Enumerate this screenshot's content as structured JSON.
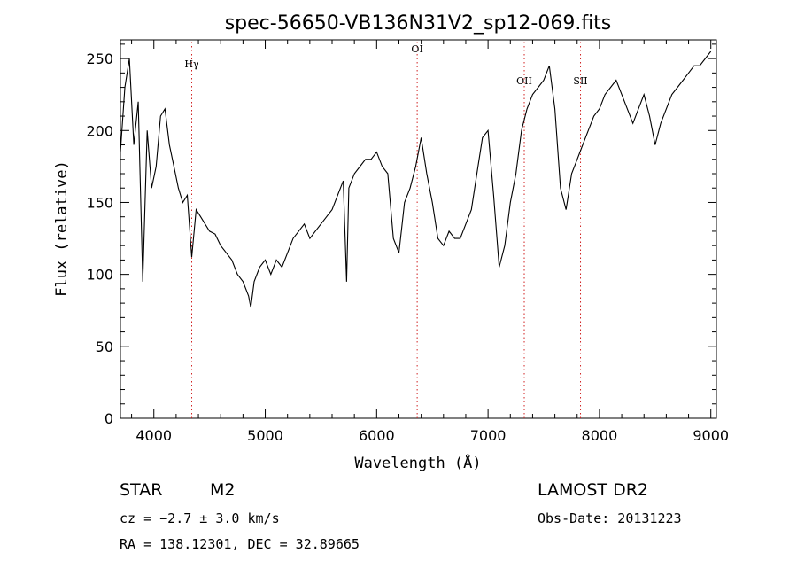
{
  "colors": {
    "spectrum": "#000000",
    "marker": "#d02020",
    "axes": "#000000"
  },
  "chart_data": {
    "type": "line",
    "title": "spec-56650-VB136N31V2_sp12-069.fits",
    "xlabel": "Wavelength (Å)",
    "ylabel": "Flux (relative)",
    "xlim": [
      3700,
      9050
    ],
    "ylim": [
      0,
      263
    ],
    "xticks": [
      4000,
      5000,
      6000,
      7000,
      8000,
      9000
    ],
    "yticks": [
      0,
      50,
      100,
      150,
      200,
      250
    ],
    "grid": false,
    "line_markers": [
      {
        "label": "Hγ",
        "x": 4340
      },
      {
        "label": "OI",
        "x": 6364
      },
      {
        "label": "OII",
        "x": 7325
      },
      {
        "label": "SII",
        "x": 7830
      }
    ],
    "series": [
      {
        "x": [
          3700,
          3740,
          3780,
          3820,
          3860,
          3900,
          3940,
          3980,
          4020,
          4060,
          4100,
          4140,
          4180,
          4220,
          4260,
          4300,
          4340,
          4380,
          4420,
          4460,
          4500,
          4550,
          4600,
          4650,
          4700,
          4750,
          4800,
          4850,
          4870,
          4900,
          4950,
          5000,
          5050,
          5100,
          5150,
          5200,
          5250,
          5300,
          5350,
          5400,
          5450,
          5500,
          5550,
          5600,
          5650,
          5700,
          5730,
          5750,
          5800,
          5850,
          5900,
          5950,
          6000,
          6050,
          6100,
          6150,
          6200,
          6250,
          6300,
          6350,
          6400,
          6450,
          6500,
          6550,
          6600,
          6650,
          6700,
          6750,
          6800,
          6850,
          6900,
          6950,
          7000,
          7050,
          7100,
          7150,
          7200,
          7250,
          7300,
          7350,
          7400,
          7450,
          7500,
          7550,
          7600,
          7650,
          7700,
          7750,
          7800,
          7850,
          7900,
          7950,
          8000,
          8050,
          8100,
          8150,
          8200,
          8250,
          8300,
          8350,
          8400,
          8450,
          8500,
          8550,
          8600,
          8650,
          8700,
          8750,
          8800,
          8850,
          8900,
          8950,
          9000
        ],
        "y": [
          185,
          230,
          250,
          190,
          220,
          95,
          200,
          160,
          175,
          210,
          215,
          190,
          175,
          160,
          150,
          155,
          112,
          145,
          140,
          135,
          130,
          128,
          120,
          115,
          110,
          100,
          95,
          85,
          77,
          95,
          105,
          110,
          100,
          110,
          105,
          115,
          125,
          130,
          135,
          125,
          130,
          135,
          140,
          145,
          155,
          165,
          95,
          160,
          170,
          175,
          180,
          180,
          185,
          175,
          170,
          125,
          115,
          150,
          160,
          175,
          195,
          170,
          150,
          125,
          120,
          130,
          125,
          125,
          135,
          145,
          170,
          195,
          200,
          155,
          105,
          120,
          150,
          170,
          200,
          215,
          225,
          230,
          235,
          245,
          215,
          160,
          145,
          170,
          180,
          190,
          200,
          210,
          215,
          225,
          230,
          235,
          225,
          215,
          205,
          215,
          225,
          210,
          190,
          205,
          215,
          225,
          230,
          235,
          240,
          245,
          245,
          250,
          255
        ]
      }
    ]
  },
  "info": {
    "object_type": "STAR",
    "subclass": "M2",
    "cz": "cz = −2.7 ± 3.0 km/s",
    "coords": "RA = 138.12301, DEC =  32.89665",
    "survey": "LAMOST DR2",
    "obs_date": "Obs-Date: 20131223"
  }
}
